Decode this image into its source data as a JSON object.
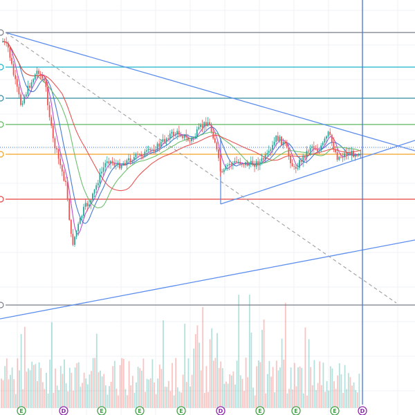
{
  "colors": {
    "background": "#ffffff",
    "grid": "#eef0f4",
    "up_candle": "#26a69a",
    "down_candle": "#ef5350",
    "trendline": "#5b8def",
    "crosshair": "#4a78d8",
    "dashed_line": "#9e9e9e",
    "fib_top": "#787b86",
    "fib_cyan": "#17b2c7",
    "fib_teal": "#2f8a9f",
    "fib_green": "#5cb85c",
    "fib_orange": "#f0a020",
    "fib_red": "#e5413f",
    "fib_bottom": "#787b86",
    "ma_fast": "#b13bcc",
    "ma_mid": "#2f6cd1",
    "ma_slow": "#5cb85c",
    "ma_slowest": "#e5413f",
    "last_price_dotted": "#3b6fd6",
    "event_earnings": "#43a047",
    "event_dividend": "#8e24aa"
  },
  "chart_data": {
    "type": "candlestick",
    "title": "",
    "xlabel": "",
    "ylabel": "",
    "grid": true,
    "legend": "none",
    "horizontal_levels": [
      {
        "name": "fib-level-top",
        "color_key": "fib_top"
      },
      {
        "name": "fib-level-cyan",
        "color_key": "fib_cyan"
      },
      {
        "name": "fib-level-teal",
        "color_key": "fib_teal"
      },
      {
        "name": "fib-level-green",
        "color_key": "fib_green"
      },
      {
        "name": "fib-level-orange",
        "color_key": "fib_orange"
      },
      {
        "name": "fib-level-red",
        "color_key": "fib_red"
      },
      {
        "name": "fib-level-bottom",
        "color_key": "fib_bottom"
      }
    ],
    "event_markers": [
      {
        "label": "E",
        "kind": "earnings"
      },
      {
        "label": "D",
        "kind": "dividend"
      },
      {
        "label": "E",
        "kind": "earnings"
      },
      {
        "label": "E",
        "kind": "earnings"
      },
      {
        "label": "E",
        "kind": "earnings"
      },
      {
        "label": "D",
        "kind": "dividend"
      },
      {
        "label": "E",
        "kind": "earnings"
      },
      {
        "label": "E",
        "kind": "earnings"
      },
      {
        "label": "E",
        "kind": "earnings"
      },
      {
        "label": "D",
        "kind": "dividend"
      }
    ]
  }
}
